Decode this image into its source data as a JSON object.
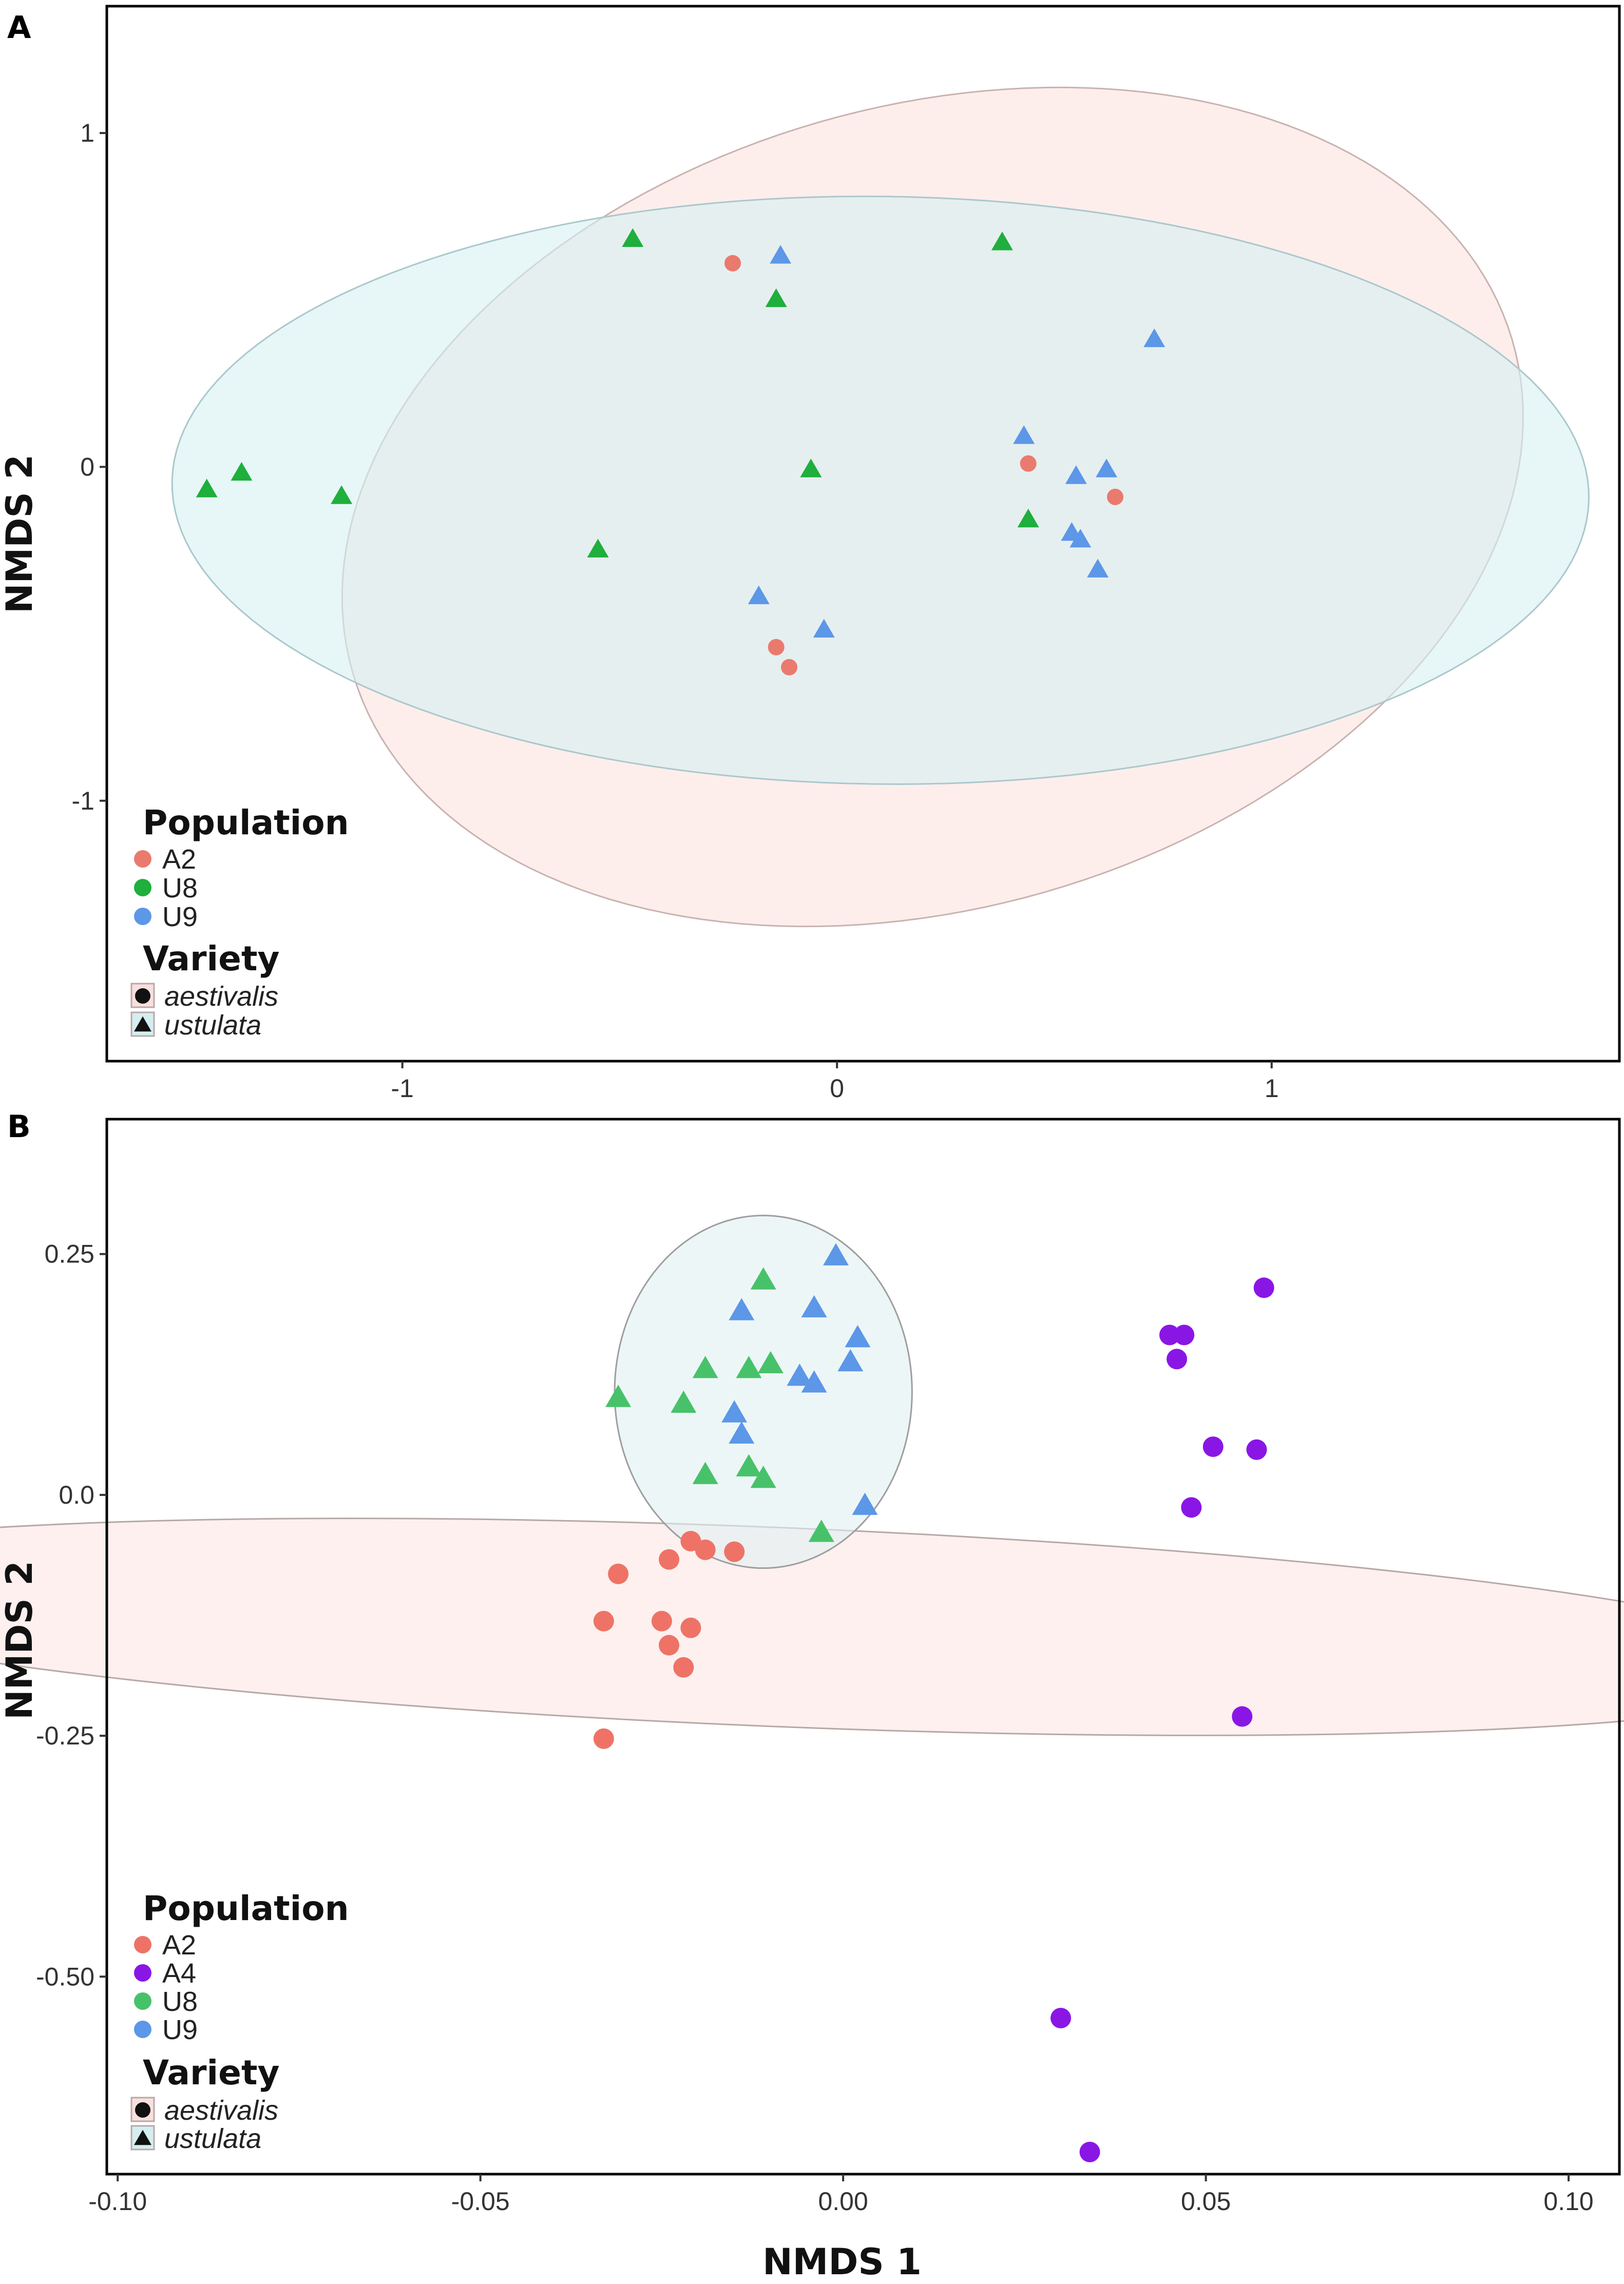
{
  "chart_data": [
    {
      "type": "scatter",
      "panel_label": "A",
      "title": "",
      "xlabel": "",
      "ylabel": "NMDS 2",
      "xlim": [
        -1.68,
        1.8
      ],
      "ylim": [
        -1.78,
        1.38
      ],
      "x_ticks": [
        -1,
        0,
        1
      ],
      "x_tick_labels": [
        "-1",
        "0",
        "1"
      ],
      "y_ticks": [
        -1,
        0,
        1
      ],
      "y_tick_labels": [
        "-1",
        "0",
        "1"
      ],
      "grid": false,
      "legend_position": "bottom-left",
      "populations": [
        {
          "name": "A2",
          "color": "#ea7a6e"
        },
        {
          "name": "U8",
          "color": "#1eaf3c"
        },
        {
          "name": "U9",
          "color": "#5c97e8"
        }
      ],
      "varieties": [
        {
          "name": "aestivalis",
          "shape": "circle",
          "fill": "#f9e0de"
        },
        {
          "name": "ustulata",
          "shape": "triangle",
          "fill": "#d4eef0"
        }
      ],
      "legend": {
        "population_title": "Population",
        "variety_title": "Variety"
      },
      "ellipses": [
        {
          "variety": "aestivalis",
          "cx": 0.22,
          "cy": -0.12,
          "rx": 1.45,
          "ry": 1.15,
          "angle_deg": 35,
          "fill": "#fbe3e0",
          "stroke": "#c9b3b0"
        },
        {
          "variety": "ustulata",
          "cx": 0.1,
          "cy": -0.07,
          "rx": 1.63,
          "ry": 0.88,
          "angle_deg": -1,
          "fill": "#d7f0f2",
          "stroke": "#aac8cc"
        }
      ],
      "series": [
        {
          "population": "A2",
          "variety": "aestivalis",
          "points": [
            [
              -0.24,
              0.61
            ],
            [
              0.44,
              0.01
            ],
            [
              0.64,
              -0.09
            ],
            [
              -0.14,
              -0.54
            ],
            [
              -0.11,
              -0.6
            ]
          ]
        },
        {
          "population": "U8",
          "variety": "ustulata",
          "points": [
            [
              -0.47,
              0.68
            ],
            [
              0.38,
              0.67
            ],
            [
              -0.14,
              0.5
            ],
            [
              -1.45,
              -0.07
            ],
            [
              -1.37,
              -0.02
            ],
            [
              -1.14,
              -0.09
            ],
            [
              -0.06,
              -0.01
            ],
            [
              0.44,
              -0.16
            ],
            [
              -0.55,
              -0.25
            ]
          ]
        },
        {
          "population": "U9",
          "variety": "ustulata",
          "points": [
            [
              -0.13,
              0.63
            ],
            [
              0.73,
              0.38
            ],
            [
              0.43,
              0.09
            ],
            [
              0.55,
              -0.03
            ],
            [
              0.62,
              -0.01
            ],
            [
              0.54,
              -0.2
            ],
            [
              0.56,
              -0.22
            ],
            [
              0.6,
              -0.31
            ],
            [
              -0.18,
              -0.39
            ],
            [
              -0.03,
              -0.49
            ]
          ]
        }
      ]
    },
    {
      "type": "scatter",
      "panel_label": "B",
      "title": "",
      "xlabel": "NMDS 1",
      "ylabel": "NMDS 2",
      "xlim": [
        -0.1015,
        0.107
      ],
      "ylim": [
        -0.705,
        0.39
      ],
      "x_ticks": [
        -0.1,
        -0.05,
        0.0,
        0.05,
        0.1
      ],
      "x_tick_labels": [
        "-0.10",
        "-0.05",
        "0.00",
        "0.05",
        "0.10"
      ],
      "y_ticks": [
        0.25,
        0.0,
        -0.25,
        -0.5
      ],
      "y_tick_labels": [
        "0.25",
        "0.0",
        "-0.25",
        "-0.50"
      ],
      "grid": false,
      "legend_position": "bottom-left",
      "populations": [
        {
          "name": "A2",
          "color": "#ee7366"
        },
        {
          "name": "A4",
          "color": "#8a16e6"
        },
        {
          "name": "U8",
          "color": "#47c26a"
        },
        {
          "name": "U9",
          "color": "#5c97e8"
        }
      ],
      "varieties": [
        {
          "name": "aestivalis",
          "shape": "circle",
          "fill": "#f9e0de"
        },
        {
          "name": "ustulata",
          "shape": "triangle",
          "fill": "#d4eef0"
        }
      ],
      "legend": {
        "population_title": "Population",
        "variety_title": "Variety"
      },
      "ellipses": [
        {
          "variety": "aestivalis",
          "cx": -0.0095,
          "cy": -0.137,
          "rx": 0.0958,
          "ry": 0.1578,
          "angle_deg": 61.8,
          "fill": "#fbe6e4",
          "stroke": "#b7a8a6"
        },
        {
          "variety": "ustulata",
          "cx": -0.011,
          "cy": 0.107,
          "rx": 0.0205,
          "ry": 0.183,
          "angle_deg": 0,
          "fill": "#e1f0f2",
          "stroke": "#9e9e9e"
        }
      ],
      "series": [
        {
          "population": "A2",
          "variety": "aestivalis",
          "points": [
            [
              -0.031,
              -0.082
            ],
            [
              -0.024,
              -0.067
            ],
            [
              -0.021,
              -0.048
            ],
            [
              -0.019,
              -0.057
            ],
            [
              -0.015,
              -0.059
            ],
            [
              -0.033,
              -0.131
            ],
            [
              -0.025,
              -0.131
            ],
            [
              -0.021,
              -0.138
            ],
            [
              -0.024,
              -0.156
            ],
            [
              -0.022,
              -0.179
            ],
            [
              -0.033,
              -0.253
            ]
          ]
        },
        {
          "population": "A4",
          "variety": "aestivalis",
          "points": [
            [
              0.058,
              0.215
            ],
            [
              0.045,
              0.166
            ],
            [
              0.047,
              0.166
            ],
            [
              0.046,
              0.141
            ],
            [
              0.051,
              0.05
            ],
            [
              0.057,
              0.047
            ],
            [
              0.048,
              -0.013
            ],
            [
              0.055,
              -0.23
            ],
            [
              0.03,
              -0.543
            ],
            [
              0.034,
              -0.682
            ]
          ]
        },
        {
          "population": "U8",
          "variety": "ustulata",
          "points": [
            [
              -0.031,
              0.1
            ],
            [
              -0.011,
              0.222
            ],
            [
              -0.019,
              0.13
            ],
            [
              -0.013,
              0.13
            ],
            [
              -0.01,
              0.135
            ],
            [
              -0.022,
              0.094
            ],
            [
              -0.019,
              0.02
            ],
            [
              -0.013,
              0.028
            ],
            [
              -0.011,
              0.016
            ],
            [
              -0.003,
              -0.04
            ]
          ]
        },
        {
          "population": "U9",
          "variety": "ustulata",
          "points": [
            [
              -0.001,
              0.247
            ],
            [
              -0.014,
              0.19
            ],
            [
              -0.004,
              0.193
            ],
            [
              0.002,
              0.162
            ],
            [
              0.001,
              0.137
            ],
            [
              -0.006,
              0.122
            ],
            [
              -0.004,
              0.115
            ],
            [
              -0.015,
              0.084
            ],
            [
              -0.014,
              0.062
            ],
            [
              0.003,
              -0.012
            ]
          ]
        }
      ]
    }
  ]
}
